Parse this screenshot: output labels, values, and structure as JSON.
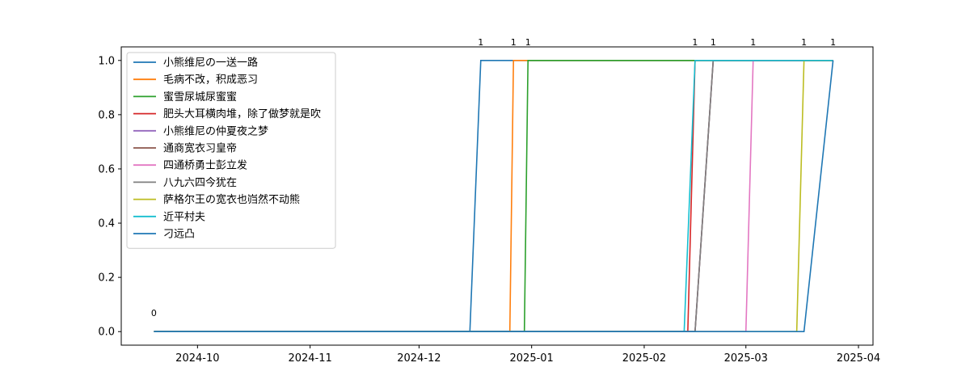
{
  "chart_data": {
    "type": "line",
    "x_axis": {
      "type": "date",
      "range": [
        "2024-09-10",
        "2025-04-05"
      ],
      "ticks": [
        "2024-10-01",
        "2024-11-01",
        "2024-12-01",
        "2025-01-01",
        "2025-02-01",
        "2025-03-01",
        "2025-04-01"
      ],
      "tick_labels": [
        "2024-10",
        "2024-11",
        "2024-12",
        "2025-01",
        "2025-02",
        "2025-03",
        "2025-04"
      ]
    },
    "y_axis": {
      "range": [
        -0.05,
        1.05
      ],
      "ticks": [
        0.0,
        0.2,
        0.4,
        0.6,
        0.8,
        1.0
      ],
      "tick_labels": [
        "0.0",
        "0.2",
        "0.4",
        "0.6",
        "0.8",
        "1.0"
      ]
    },
    "grid": false,
    "legend": {
      "placement": "upper-left"
    },
    "series": [
      {
        "name": "小熊维尼の一送一路",
        "color": "#1f77b4",
        "points": [
          [
            "2024-09-19",
            0
          ],
          [
            "2024-12-15",
            0
          ],
          [
            "2024-12-18",
            1
          ],
          [
            "2025-03-25",
            1
          ]
        ]
      },
      {
        "name": "毛病不改，积成恶习",
        "color": "#ff7f0e",
        "points": [
          [
            "2024-09-19",
            0
          ],
          [
            "2024-12-26",
            0
          ],
          [
            "2024-12-27",
            1
          ],
          [
            "2025-03-25",
            1
          ]
        ]
      },
      {
        "name": "蜜雪尿城尿蜜蜜",
        "color": "#2ca02c",
        "points": [
          [
            "2024-09-19",
            0
          ],
          [
            "2024-12-30",
            0
          ],
          [
            "2024-12-31",
            1
          ],
          [
            "2025-03-25",
            1
          ]
        ]
      },
      {
        "name": "肥头大耳横肉堆，除了做梦就是吹",
        "color": "#d62728",
        "points": [
          [
            "2024-09-19",
            0
          ],
          [
            "2025-02-13",
            0
          ],
          [
            "2025-02-15",
            1
          ],
          [
            "2025-03-25",
            1
          ]
        ]
      },
      {
        "name": "小熊维尼の仲夏夜之梦",
        "color": "#9467bd",
        "points": [
          [
            "2024-09-19",
            0
          ],
          [
            "2025-02-15",
            0
          ],
          [
            "2025-02-20",
            1
          ],
          [
            "2025-03-25",
            1
          ]
        ]
      },
      {
        "name": "通商宽衣习皇帝",
        "color": "#8c564b",
        "points": [
          [
            "2024-09-19",
            0
          ],
          [
            "2025-02-15",
            0
          ],
          [
            "2025-02-20",
            1
          ],
          [
            "2025-03-25",
            1
          ]
        ]
      },
      {
        "name": "四通桥勇士彭立发",
        "color": "#e377c2",
        "points": [
          [
            "2024-09-19",
            0
          ],
          [
            "2025-03-01",
            0
          ],
          [
            "2025-03-03",
            1
          ],
          [
            "2025-03-25",
            1
          ]
        ]
      },
      {
        "name": "八九六四今犹在",
        "color": "#7f7f7f",
        "points": [
          [
            "2024-09-19",
            0
          ],
          [
            "2025-02-15",
            0
          ],
          [
            "2025-02-20",
            1
          ],
          [
            "2025-03-25",
            1
          ]
        ]
      },
      {
        "name": "萨格尔王の宽衣也岿然不动熊",
        "color": "#bcbd22",
        "points": [
          [
            "2024-09-19",
            0
          ],
          [
            "2025-03-15",
            0
          ],
          [
            "2025-03-17",
            1
          ],
          [
            "2025-03-25",
            1
          ]
        ]
      },
      {
        "name": "近平村夫",
        "color": "#17becf",
        "points": [
          [
            "2024-09-19",
            0
          ],
          [
            "2025-02-12",
            0
          ],
          [
            "2025-02-15",
            1
          ],
          [
            "2025-03-25",
            1
          ]
        ]
      },
      {
        "name": "刁远凸",
        "color": "#1f77b4",
        "points": [
          [
            "2024-09-19",
            0
          ],
          [
            "2025-03-17",
            0
          ],
          [
            "2025-03-25",
            1
          ]
        ]
      }
    ],
    "annotations": [
      {
        "text": "0",
        "x": "2024-09-19",
        "y": 0
      },
      {
        "text": "1",
        "x": "2024-12-18",
        "y": 1
      },
      {
        "text": "1",
        "x": "2024-12-27",
        "y": 1
      },
      {
        "text": "1",
        "x": "2024-12-31",
        "y": 1
      },
      {
        "text": "1",
        "x": "2025-02-15",
        "y": 1
      },
      {
        "text": "1",
        "x": "2025-02-20",
        "y": 1
      },
      {
        "text": "1",
        "x": "2025-03-03",
        "y": 1
      },
      {
        "text": "1",
        "x": "2025-03-17",
        "y": 1
      },
      {
        "text": "1",
        "x": "2025-03-25",
        "y": 1
      }
    ]
  }
}
